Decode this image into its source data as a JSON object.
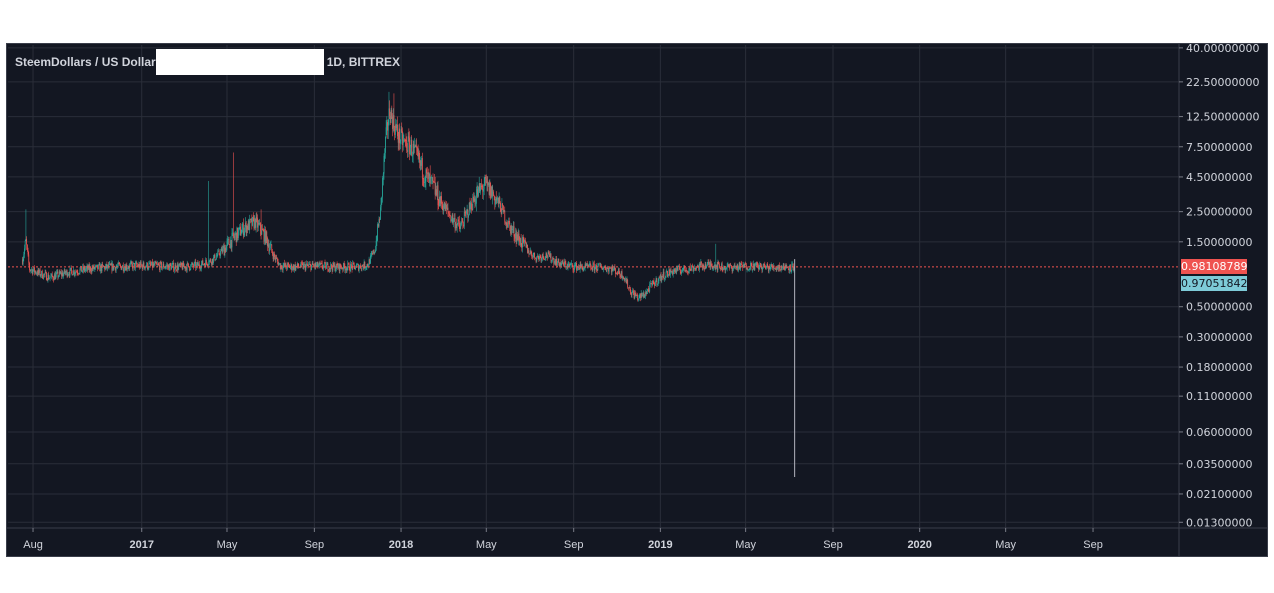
{
  "chart_title": {
    "symbol": "SteemDollars / US Dollar",
    "interval_exchange": "1D, BITTREX"
  },
  "colors": {
    "background": "#131722",
    "grid": "#2a2e39",
    "axis_text": "#d1d4dc",
    "up_candle": "#26a69a",
    "down_candle": "#ef5350",
    "last_price_tag": "#ef5350",
    "current_price_tag": "#7ecbd8"
  },
  "price_tags": {
    "last": "0.98108789",
    "current": "0.97051842"
  },
  "chart_data": {
    "type": "candlestick",
    "title": "SteemDollars / US Dollar 1D, BITTREX",
    "y_scale": "log",
    "ylim": [
      0.0118,
      42.0
    ],
    "xlim": [
      "2016-07-01",
      "2020-12-31"
    ],
    "grid": true,
    "y_ticks": [
      "40.00000000",
      "22.50000000",
      "12.50000000",
      "7.50000000",
      "4.50000000",
      "2.50000000",
      "1.50000000",
      "0.98108789",
      "0.97051842",
      "0.50000000",
      "0.30000000",
      "0.18000000",
      "0.11000000",
      "0.06000000",
      "0.03500000",
      "0.02100000",
      "0.01300000"
    ],
    "y_tick_values": [
      40.0,
      22.5,
      12.5,
      7.5,
      4.5,
      2.5,
      1.5,
      0.5,
      0.3,
      0.18,
      0.11,
      0.06,
      0.035,
      0.021,
      0.013
    ],
    "x_ticks": [
      {
        "label": "Aug",
        "date": "2016-08-01",
        "bold": false
      },
      {
        "label": "2017",
        "date": "2017-01-01",
        "bold": true
      },
      {
        "label": "May",
        "date": "2017-05-01",
        "bold": false
      },
      {
        "label": "Sep",
        "date": "2017-09-01",
        "bold": false
      },
      {
        "label": "2018",
        "date": "2018-01-01",
        "bold": true
      },
      {
        "label": "May",
        "date": "2018-05-01",
        "bold": false
      },
      {
        "label": "Sep",
        "date": "2018-09-01",
        "bold": false
      },
      {
        "label": "2019",
        "date": "2019-01-01",
        "bold": true
      },
      {
        "label": "May",
        "date": "2019-05-01",
        "bold": false
      },
      {
        "label": "Sep",
        "date": "2019-09-01",
        "bold": false
      },
      {
        "label": "2020",
        "date": "2020-01-01",
        "bold": true
      },
      {
        "label": "May",
        "date": "2020-05-01",
        "bold": false
      },
      {
        "label": "Sep",
        "date": "2020-09-01",
        "bold": false
      }
    ],
    "last_price_line": 0.98108789,
    "price_path": [
      [
        "2016-07-17",
        1.1
      ],
      [
        "2016-07-22",
        1.5
      ],
      [
        "2016-07-27",
        0.95
      ],
      [
        "2016-08-10",
        0.88
      ],
      [
        "2016-08-25",
        0.82
      ],
      [
        "2016-09-20",
        0.9
      ],
      [
        "2016-10-20",
        0.95
      ],
      [
        "2016-11-20",
        0.98
      ],
      [
        "2016-12-20",
        1.0
      ],
      [
        "2017-01-20",
        1.0
      ],
      [
        "2017-02-20",
        0.98
      ],
      [
        "2017-03-20",
        1.0
      ],
      [
        "2017-04-10",
        1.1
      ],
      [
        "2017-04-25",
        1.3
      ],
      [
        "2017-05-10",
        1.6
      ],
      [
        "2017-05-25",
        1.9
      ],
      [
        "2017-06-10",
        2.1
      ],
      [
        "2017-06-25",
        1.6
      ],
      [
        "2017-07-05",
        1.2
      ],
      [
        "2017-07-15",
        1.0
      ],
      [
        "2017-08-01",
        0.98
      ],
      [
        "2017-09-01",
        1.0
      ],
      [
        "2017-10-01",
        0.98
      ],
      [
        "2017-11-01",
        0.98
      ],
      [
        "2017-11-15",
        1.02
      ],
      [
        "2017-11-25",
        1.3
      ],
      [
        "2017-12-03",
        2.5
      ],
      [
        "2017-12-10",
        8.0
      ],
      [
        "2017-12-16",
        14.0
      ],
      [
        "2017-12-22",
        11.0
      ],
      [
        "2017-12-28",
        9.0
      ],
      [
        "2018-01-05",
        8.0
      ],
      [
        "2018-01-15",
        7.5
      ],
      [
        "2018-01-25",
        6.0
      ],
      [
        "2018-02-05",
        4.5
      ],
      [
        "2018-02-15",
        3.8
      ],
      [
        "2018-02-25",
        3.0
      ],
      [
        "2018-03-05",
        2.6
      ],
      [
        "2018-03-15",
        2.2
      ],
      [
        "2018-03-25",
        1.9
      ],
      [
        "2018-04-05",
        2.5
      ],
      [
        "2018-04-15",
        3.2
      ],
      [
        "2018-04-28",
        3.9
      ],
      [
        "2018-05-08",
        3.5
      ],
      [
        "2018-05-20",
        2.8
      ],
      [
        "2018-06-01",
        2.0
      ],
      [
        "2018-06-15",
        1.6
      ],
      [
        "2018-06-28",
        1.3
      ],
      [
        "2018-07-10",
        1.15
      ],
      [
        "2018-07-25",
        1.2
      ],
      [
        "2018-08-10",
        1.05
      ],
      [
        "2018-08-25",
        1.0
      ],
      [
        "2018-09-15",
        0.97
      ],
      [
        "2018-10-10",
        0.98
      ],
      [
        "2018-10-25",
        0.95
      ],
      [
        "2018-11-10",
        0.85
      ],
      [
        "2018-11-20",
        0.65
      ],
      [
        "2018-12-01",
        0.58
      ],
      [
        "2018-12-10",
        0.62
      ],
      [
        "2018-12-20",
        0.72
      ],
      [
        "2019-01-05",
        0.85
      ],
      [
        "2019-01-20",
        0.92
      ],
      [
        "2019-02-10",
        0.95
      ],
      [
        "2019-03-01",
        1.0
      ],
      [
        "2019-03-15",
        1.02
      ],
      [
        "2019-04-01",
        0.97
      ],
      [
        "2019-04-20",
        0.98
      ],
      [
        "2019-05-10",
        1.0
      ],
      [
        "2019-06-01",
        0.97
      ],
      [
        "2019-06-20",
        0.98
      ],
      [
        "2019-07-01",
        0.98
      ],
      [
        "2019-07-09",
        0.98
      ]
    ],
    "spikes": [
      [
        "2016-07-22",
        2.6
      ],
      [
        "2017-04-05",
        4.2
      ],
      [
        "2017-05-10",
        6.8
      ],
      [
        "2017-06-18",
        2.6
      ],
      [
        "2017-12-15",
        19.0
      ],
      [
        "2017-12-22",
        18.5
      ],
      [
        "2019-03-20",
        1.45
      ]
    ],
    "final_wick": {
      "date": "2019-07-09",
      "high": 1.12,
      "low": 0.028
    }
  }
}
